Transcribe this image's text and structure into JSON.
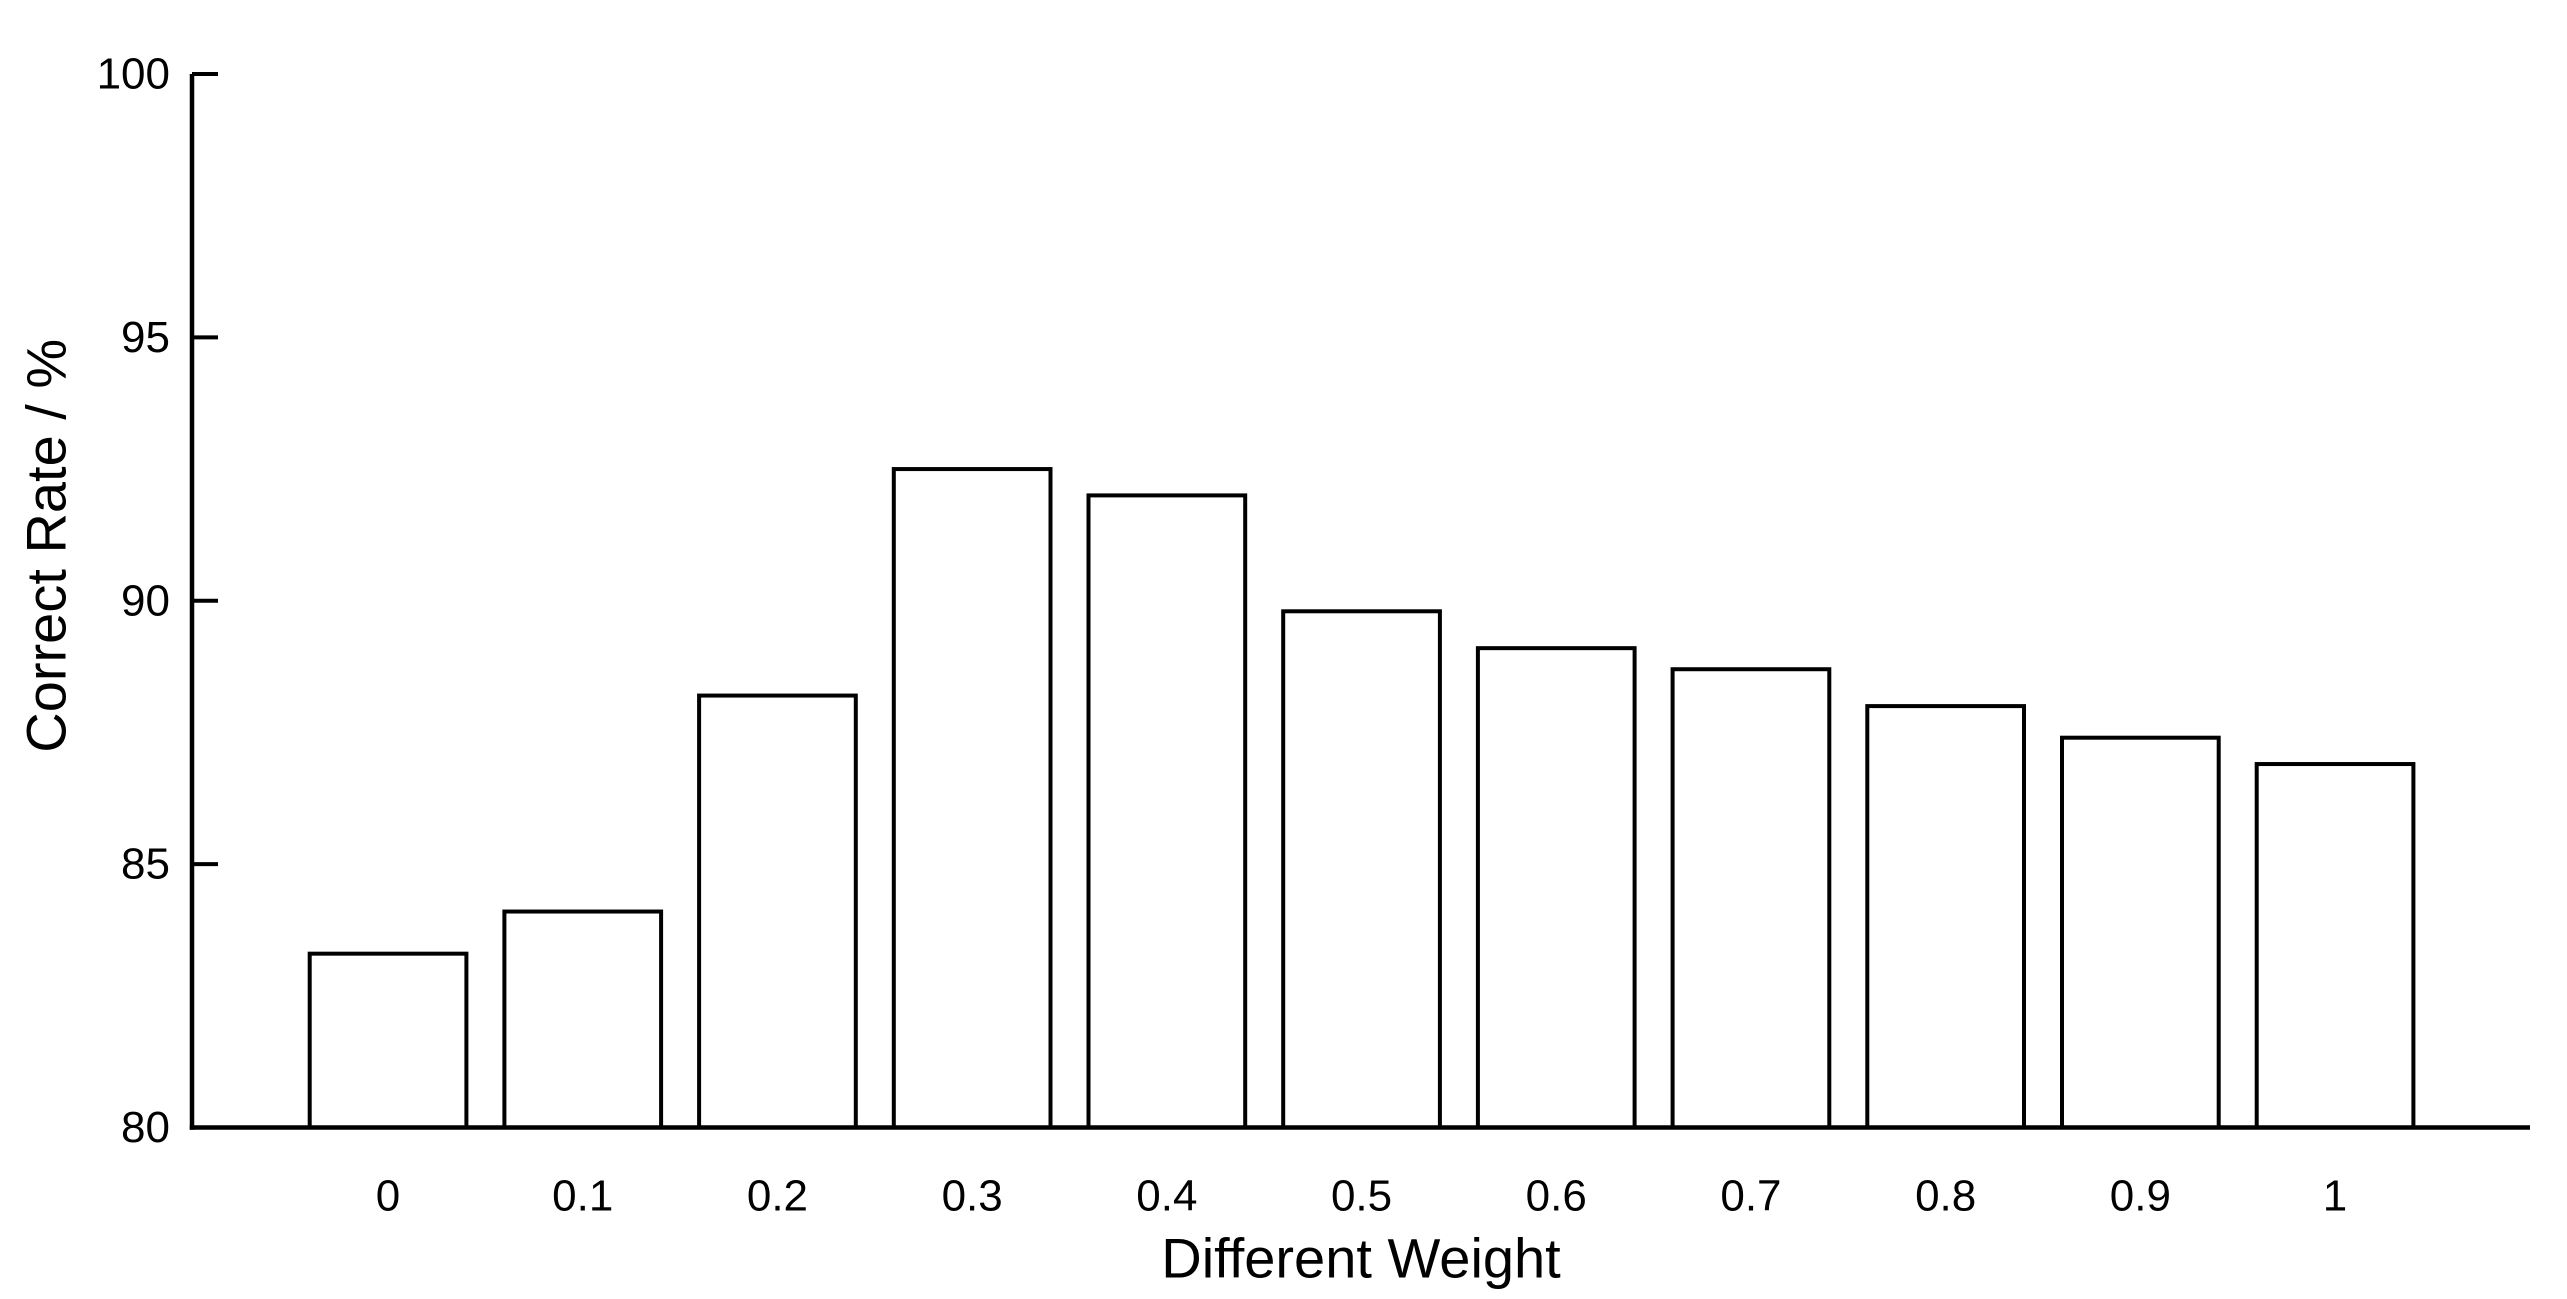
{
  "figure": {
    "background": "#ffffff",
    "ink_color": "#000000"
  },
  "chart_data": {
    "type": "bar",
    "title": "",
    "xlabel": "Different Weight",
    "ylabel": "Correct Rate / %",
    "categories": [
      "0",
      "0.1",
      "0.2",
      "0.3",
      "0.4",
      "0.5",
      "0.6",
      "0.7",
      "0.8",
      "0.9",
      "1"
    ],
    "values": [
      83.3,
      84.1,
      88.2,
      92.5,
      92.0,
      89.8,
      89.1,
      88.7,
      88.0,
      87.4,
      86.9
    ],
    "ylim": [
      80,
      100
    ],
    "yticks": [
      80,
      85,
      90,
      95,
      100
    ],
    "ytick_labels": [
      "80",
      "85",
      "90",
      "95",
      "100"
    ],
    "xtick_labels": [
      "0",
      "0.1",
      "0.2",
      "0.3",
      "0.4",
      "0.5",
      "0.6",
      "0.7",
      "0.8",
      "0.9",
      "1"
    ],
    "grid": false,
    "legend": null,
    "bar_fill": "#ffffff",
    "bar_edge": "#000000",
    "axis_color": "#000000",
    "text_color": "#000000"
  }
}
